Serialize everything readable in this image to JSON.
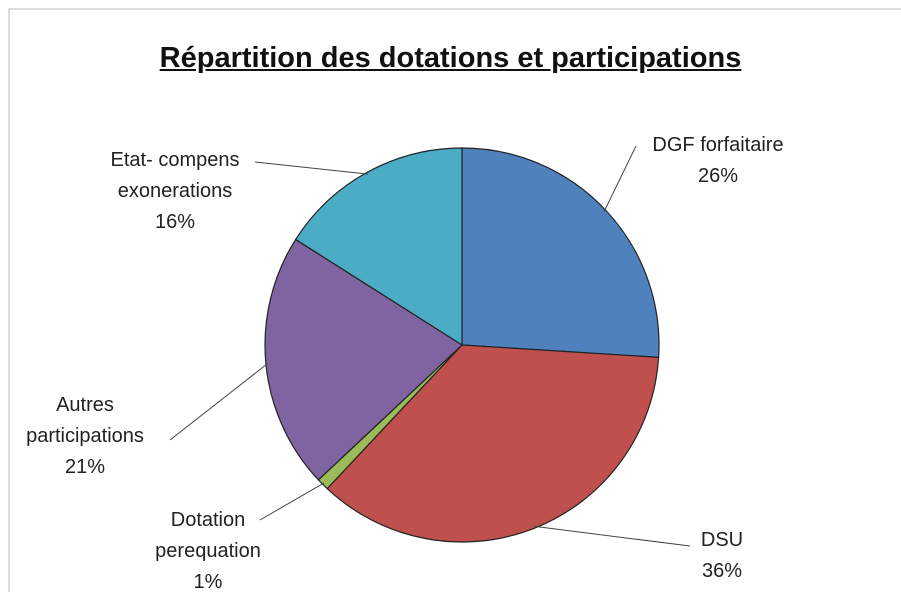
{
  "chart_data": {
    "type": "pie",
    "title": "Répartition des dotations et participations",
    "categories": [
      "DGF forfaitaire",
      "DSU",
      "Dotation\nperequation",
      "Autres\nparticipations",
      "Etat- compens\nexonerations"
    ],
    "values": [
      26,
      36,
      1,
      21,
      16
    ],
    "value_labels": [
      "26%",
      "36%",
      "1%",
      "21%",
      "16%"
    ],
    "colors": [
      "#4f81bd",
      "#c0504d",
      "#9bbb59",
      "#8064a2",
      "#4bacc6"
    ]
  }
}
